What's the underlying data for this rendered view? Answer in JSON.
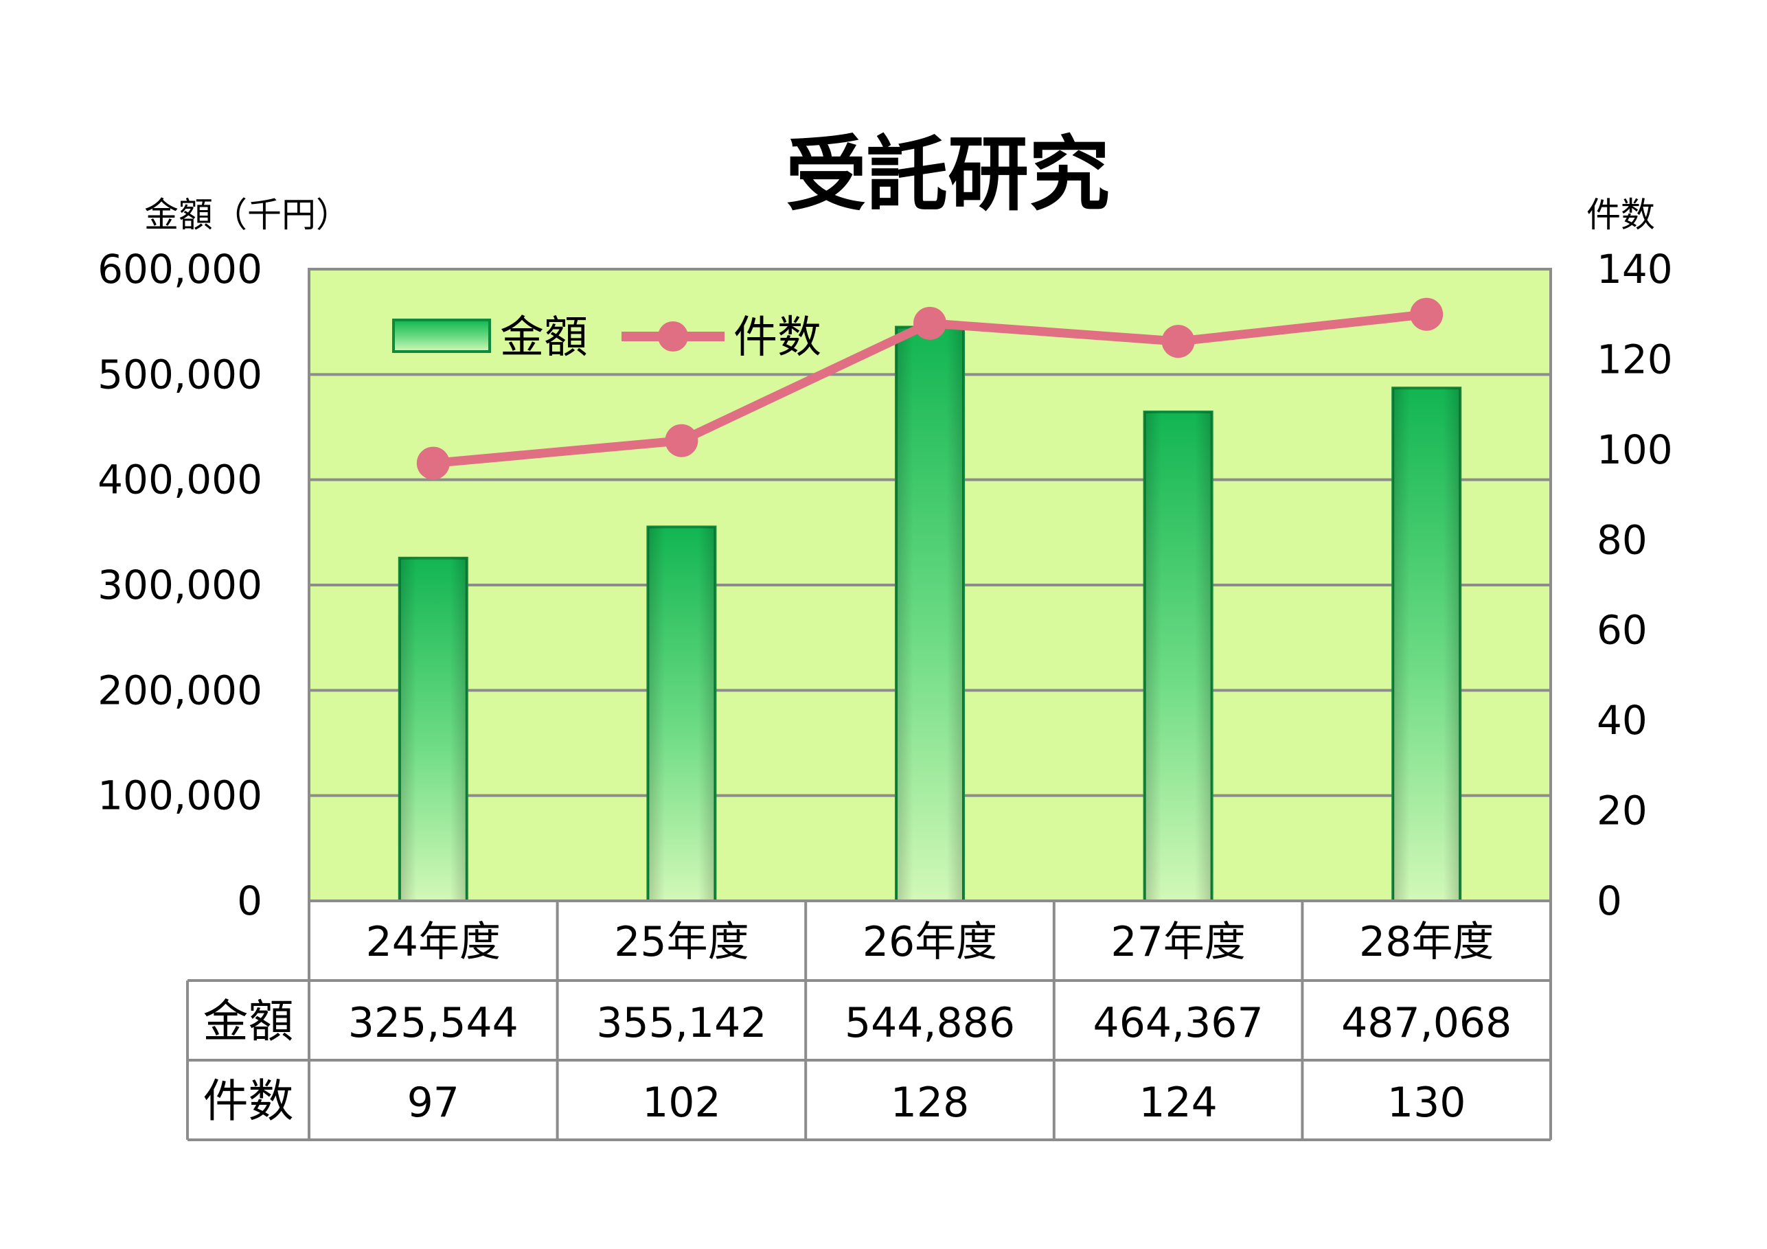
{
  "chart_data": {
    "type": "bar",
    "title": "受託研究",
    "y_left_label": "金額（千円）",
    "y_right_label": "件数",
    "categories": [
      "24年度",
      "25年度",
      "26年度",
      "27年度",
      "28年度"
    ],
    "series": [
      {
        "name": "金額",
        "type": "bar",
        "axis": "left",
        "values": [
          325544,
          355142,
          544886,
          464367,
          487068
        ],
        "labels": [
          "325,544",
          "355,142",
          "544,886",
          "464,367",
          "487,068"
        ]
      },
      {
        "name": "件数",
        "type": "line",
        "axis": "right",
        "values": [
          97,
          102,
          128,
          124,
          130
        ],
        "labels": [
          "97",
          "102",
          "128",
          "124",
          "130"
        ]
      }
    ],
    "ylim_left": [
      0,
      600000
    ],
    "yticks_left": [
      "0",
      "100,000",
      "200,000",
      "300,000",
      "400,000",
      "500,000",
      "600,000"
    ],
    "ylim_right": [
      0,
      140
    ],
    "yticks_right": [
      "0",
      "20",
      "40",
      "60",
      "80",
      "100",
      "120",
      "140"
    ],
    "grid": true,
    "legend_position": "top-left",
    "data_table": true
  },
  "colors": {
    "plot_background": "#d9f99d",
    "bar_dark": "#16b855",
    "bar_light": "#c8f7b2",
    "line": "#e06f83",
    "grid": "#8c8c8c"
  }
}
